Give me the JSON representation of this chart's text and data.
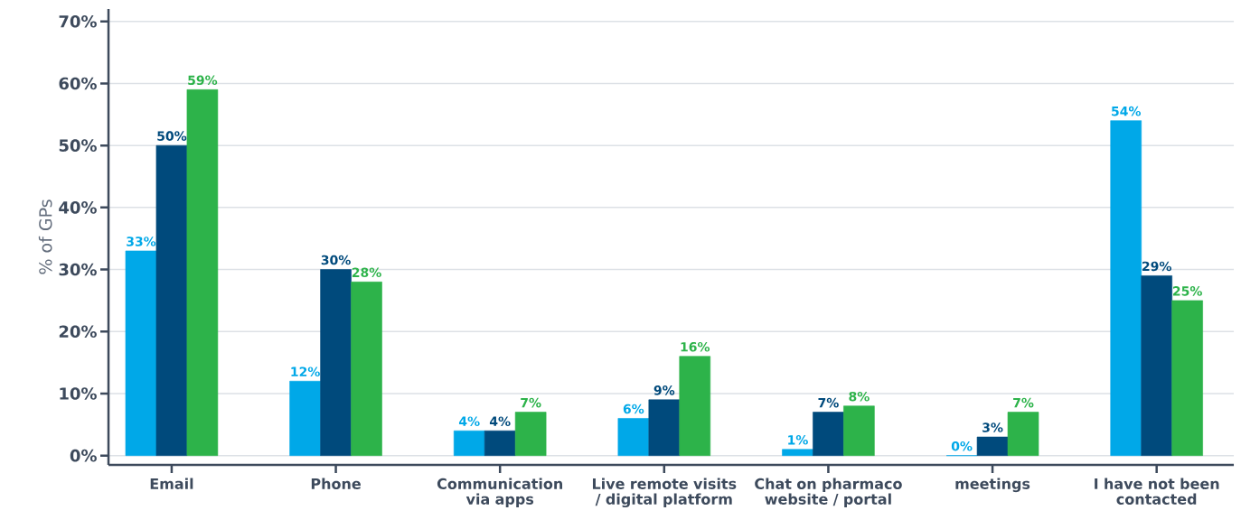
{
  "chart_data": {
    "type": "bar",
    "ylabel": "% of GPs",
    "categories": [
      "Email",
      "Phone",
      "Communication via apps",
      "Live remote visits / digital platform",
      "Chat on pharmaco website / portal",
      "meetings",
      "I have not been contacted"
    ],
    "series": [
      {
        "color": "#00a8e8",
        "values": [
          33,
          12,
          4,
          6,
          1,
          0,
          54
        ],
        "value_labels": [
          "33%",
          "12%",
          "4%",
          "6%",
          "1%",
          "0%",
          "54%"
        ]
      },
      {
        "color": "#004a7c",
        "values": [
          50,
          30,
          4,
          9,
          7,
          3,
          29
        ],
        "value_labels": [
          "50%",
          "30%",
          "4%",
          "9%",
          "7%",
          "3%",
          "29%"
        ]
      },
      {
        "color": "#2db34a",
        "values": [
          59,
          28,
          7,
          16,
          8,
          7,
          25
        ],
        "value_labels": [
          "59%",
          "28%",
          "7%",
          "16%",
          "8%",
          "7%",
          "25%"
        ]
      }
    ],
    "ylim": [
      -1.5,
      72
    ],
    "yticks": [
      {
        "value": 0,
        "label": "0%"
      },
      {
        "value": 10,
        "label": "10%"
      },
      {
        "value": 20,
        "label": "20%"
      },
      {
        "value": 30,
        "label": "30%"
      },
      {
        "value": 40,
        "label": "40%"
      },
      {
        "value": 50,
        "label": "50%"
      },
      {
        "value": 60,
        "label": "60%"
      },
      {
        "value": 70,
        "label": "70%"
      }
    ],
    "grid": "y"
  }
}
